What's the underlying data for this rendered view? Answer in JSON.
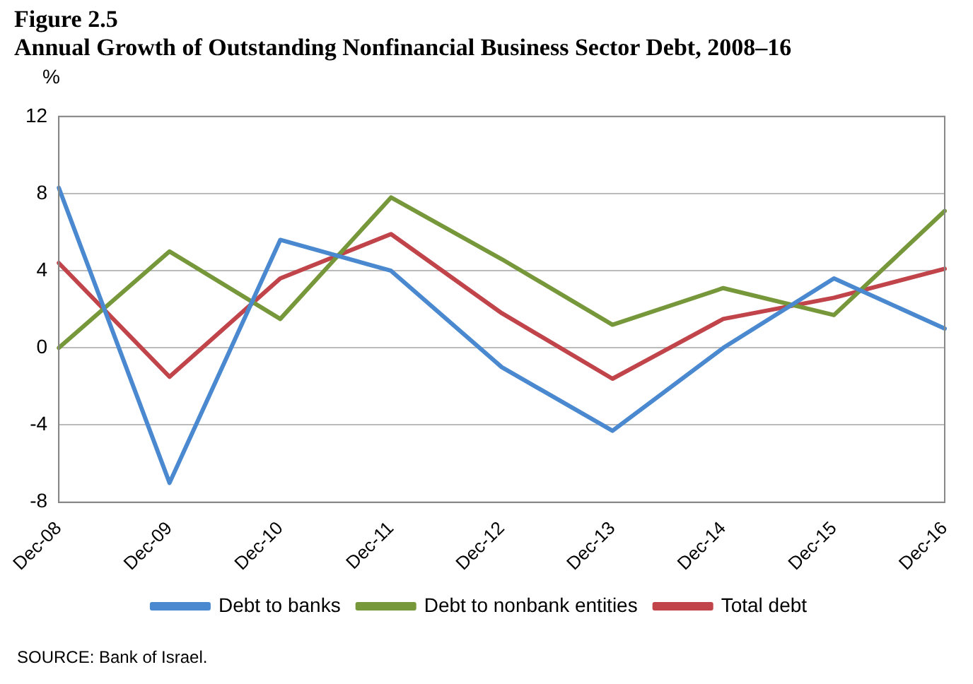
{
  "chart_data": {
    "type": "line",
    "title": "Figure 2.5",
    "subtitle": "Annual Growth of Outstanding Nonfinancial Business Sector Debt, 2008–16",
    "ylabel": "%",
    "categories": [
      "Dec-08",
      "Dec-09",
      "Dec-10",
      "Dec-11",
      "Dec-12",
      "Dec-13",
      "Dec-14",
      "Dec-15",
      "Dec-16"
    ],
    "series": [
      {
        "name": "Debt to banks",
        "color": "#4a89d0",
        "values": [
          8.3,
          -7.0,
          5.6,
          4.0,
          -1.0,
          -4.3,
          0.0,
          3.6,
          1.0
        ]
      },
      {
        "name": "Debt to nonbank entities",
        "color": "#76973a",
        "values": [
          0.0,
          5.0,
          1.5,
          7.8,
          4.6,
          1.2,
          3.1,
          1.7,
          7.1
        ]
      },
      {
        "name": "Total debt",
        "color": "#c0444a",
        "values": [
          4.4,
          -1.5,
          3.6,
          5.9,
          1.8,
          -1.6,
          1.5,
          2.6,
          4.1
        ]
      }
    ],
    "ylim": [
      -8,
      12
    ],
    "yticks": [
      -8,
      -4,
      0,
      4,
      8,
      12
    ],
    "grid": "y",
    "legend": "bottom",
    "marker": "none",
    "line_style": "solid",
    "annotations": [
      "SOURCE: Bank of Israel."
    ]
  }
}
